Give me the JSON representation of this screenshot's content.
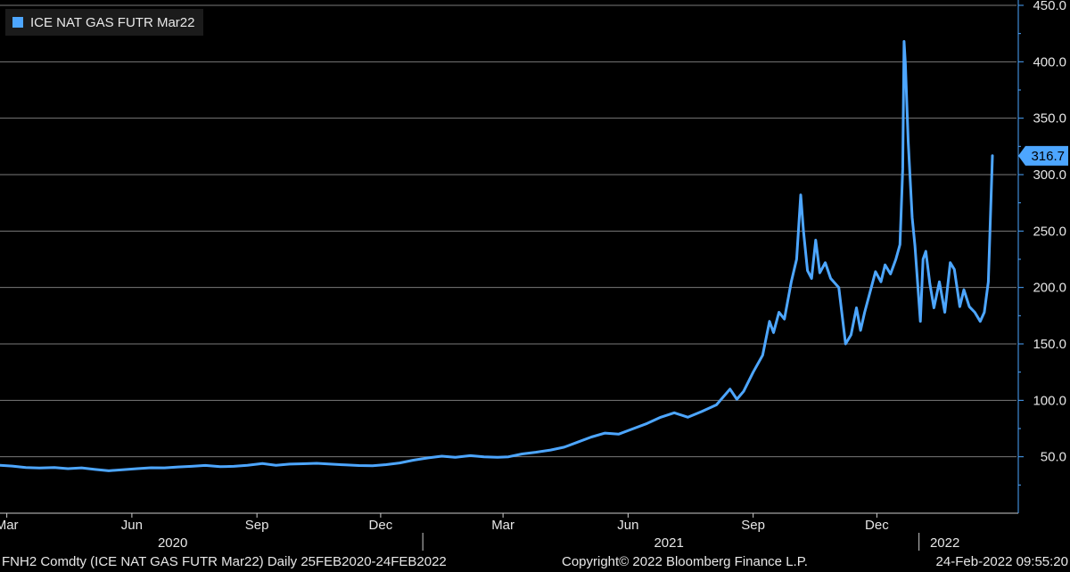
{
  "legend": {
    "label": "ICE NAT GAS FUTR Mar22",
    "color": "#4da6ff"
  },
  "footer": {
    "left": "FNH2 Comdty (ICE NAT GAS FUTR  Mar22)  Daily 25FEB2020-24FEB2022",
    "center": "Copyright© 2022 Bloomberg Finance L.P.",
    "right": "24-Feb-2022 09:55:20"
  },
  "chart_data": {
    "type": "line",
    "title": "",
    "xlabel": "",
    "ylabel": "",
    "ylim": [
      0,
      450
    ],
    "yticks": [
      50,
      100,
      150,
      200,
      250,
      300,
      350,
      400,
      450
    ],
    "ytick_labels": [
      "50.0",
      "100.0",
      "150.0",
      "200.0",
      "250.0",
      "300.0",
      "350.0",
      "400.0",
      "450.0"
    ],
    "grid": true,
    "legend_position": "top-left",
    "x_range": [
      "2020-02-25",
      "2022-02-24"
    ],
    "month_ticks": [
      {
        "date": "2020-03-01",
        "label": "Mar"
      },
      {
        "date": "2020-06-01",
        "label": "Jun"
      },
      {
        "date": "2020-09-01",
        "label": "Sep"
      },
      {
        "date": "2020-12-01",
        "label": "Dec"
      },
      {
        "date": "2021-03-01",
        "label": "Mar"
      },
      {
        "date": "2021-06-01",
        "label": "Jun"
      },
      {
        "date": "2021-09-01",
        "label": "Sep"
      },
      {
        "date": "2021-12-01",
        "label": "Dec"
      }
    ],
    "year_ticks": [
      {
        "date": "2020-07-01",
        "label": "2020"
      },
      {
        "date": "2021-07-01",
        "label": "2021"
      },
      {
        "date": "2022-01-20",
        "label": "2022"
      }
    ],
    "year_separators": [
      "2021-01-01",
      "2022-01-01"
    ],
    "last_value": {
      "value": 316.7,
      "label": "316.7"
    },
    "series": [
      {
        "name": "ICE NAT GAS FUTR Mar22",
        "color": "#4da6ff",
        "points": [
          [
            "2020-02-25",
            42.5
          ],
          [
            "2020-03-05",
            41.8
          ],
          [
            "2020-03-15",
            40.5
          ],
          [
            "2020-03-25",
            40.0
          ],
          [
            "2020-04-05",
            40.5
          ],
          [
            "2020-04-15",
            39.5
          ],
          [
            "2020-04-25",
            40.2
          ],
          [
            "2020-05-05",
            38.8
          ],
          [
            "2020-05-15",
            37.6
          ],
          [
            "2020-05-25",
            38.5
          ],
          [
            "2020-06-05",
            39.5
          ],
          [
            "2020-06-15",
            40.3
          ],
          [
            "2020-06-25",
            40.2
          ],
          [
            "2020-07-05",
            41.0
          ],
          [
            "2020-07-15",
            41.5
          ],
          [
            "2020-07-25",
            42.3
          ],
          [
            "2020-08-05",
            41.2
          ],
          [
            "2020-08-15",
            41.5
          ],
          [
            "2020-08-25",
            42.5
          ],
          [
            "2020-09-05",
            44.0
          ],
          [
            "2020-09-15",
            42.5
          ],
          [
            "2020-09-25",
            43.5
          ],
          [
            "2020-10-05",
            43.8
          ],
          [
            "2020-10-15",
            44.2
          ],
          [
            "2020-10-25",
            43.5
          ],
          [
            "2020-11-05",
            42.8
          ],
          [
            "2020-11-15",
            42.2
          ],
          [
            "2020-11-25",
            42.0
          ],
          [
            "2020-12-05",
            43.0
          ],
          [
            "2020-12-15",
            44.5
          ],
          [
            "2020-12-25",
            47.0
          ],
          [
            "2021-01-05",
            49.0
          ],
          [
            "2021-01-15",
            50.5
          ],
          [
            "2021-01-25",
            49.5
          ],
          [
            "2021-02-05",
            51.0
          ],
          [
            "2021-02-15",
            50.0
          ],
          [
            "2021-02-25",
            49.5
          ],
          [
            "2021-03-05",
            50.0
          ],
          [
            "2021-03-15",
            52.5
          ],
          [
            "2021-03-25",
            54.0
          ],
          [
            "2021-04-05",
            56.0
          ],
          [
            "2021-04-15",
            58.5
          ],
          [
            "2021-04-25",
            63.0
          ],
          [
            "2021-05-05",
            67.5
          ],
          [
            "2021-05-15",
            71.0
          ],
          [
            "2021-05-25",
            70.0
          ],
          [
            "2021-06-05",
            75.0
          ],
          [
            "2021-06-15",
            79.5
          ],
          [
            "2021-06-25",
            85.0
          ],
          [
            "2021-07-05",
            89.0
          ],
          [
            "2021-07-15",
            85.0
          ],
          [
            "2021-07-25",
            90.0
          ],
          [
            "2021-08-05",
            96.0
          ],
          [
            "2021-08-15",
            110.0
          ],
          [
            "2021-08-20",
            101.0
          ],
          [
            "2021-08-25",
            108.0
          ],
          [
            "2021-09-01",
            125.0
          ],
          [
            "2021-09-08",
            140.0
          ],
          [
            "2021-09-13",
            170.0
          ],
          [
            "2021-09-16",
            160.0
          ],
          [
            "2021-09-20",
            178.0
          ],
          [
            "2021-09-24",
            172.0
          ],
          [
            "2021-09-29",
            205.0
          ],
          [
            "2021-10-03",
            225.0
          ],
          [
            "2021-10-06",
            282.0
          ],
          [
            "2021-10-08",
            250.0
          ],
          [
            "2021-10-11",
            215.0
          ],
          [
            "2021-10-14",
            208.0
          ],
          [
            "2021-10-17",
            242.0
          ],
          [
            "2021-10-20",
            213.0
          ],
          [
            "2021-10-24",
            222.0
          ],
          [
            "2021-10-28",
            208.0
          ],
          [
            "2021-11-03",
            200.0
          ],
          [
            "2021-11-08",
            150.0
          ],
          [
            "2021-11-12",
            158.0
          ],
          [
            "2021-11-16",
            182.0
          ],
          [
            "2021-11-19",
            162.0
          ],
          [
            "2021-11-22",
            178.0
          ],
          [
            "2021-11-26",
            196.0
          ],
          [
            "2021-11-30",
            214.0
          ],
          [
            "2021-12-04",
            205.0
          ],
          [
            "2021-12-07",
            220.0
          ],
          [
            "2021-12-11",
            212.0
          ],
          [
            "2021-12-15",
            225.0
          ],
          [
            "2021-12-18",
            238.0
          ],
          [
            "2021-12-20",
            305.0
          ],
          [
            "2021-12-21",
            418.0
          ],
          [
            "2021-12-22",
            398.0
          ],
          [
            "2021-12-24",
            330.0
          ],
          [
            "2021-12-27",
            262.0
          ],
          [
            "2021-12-29",
            237.0
          ],
          [
            "2022-01-02",
            170.0
          ],
          [
            "2022-01-04",
            225.0
          ],
          [
            "2022-01-06",
            232.0
          ],
          [
            "2022-01-09",
            203.0
          ],
          [
            "2022-01-12",
            182.0
          ],
          [
            "2022-01-16",
            205.0
          ],
          [
            "2022-01-20",
            178.0
          ],
          [
            "2022-01-24",
            222.0
          ],
          [
            "2022-01-27",
            216.0
          ],
          [
            "2022-01-31",
            183.0
          ],
          [
            "2022-02-03",
            198.0
          ],
          [
            "2022-02-07",
            183.0
          ],
          [
            "2022-02-11",
            178.0
          ],
          [
            "2022-02-15",
            170.0
          ],
          [
            "2022-02-18",
            178.0
          ],
          [
            "2022-02-21",
            205.0
          ],
          [
            "2022-02-24",
            316.7
          ]
        ]
      }
    ]
  }
}
